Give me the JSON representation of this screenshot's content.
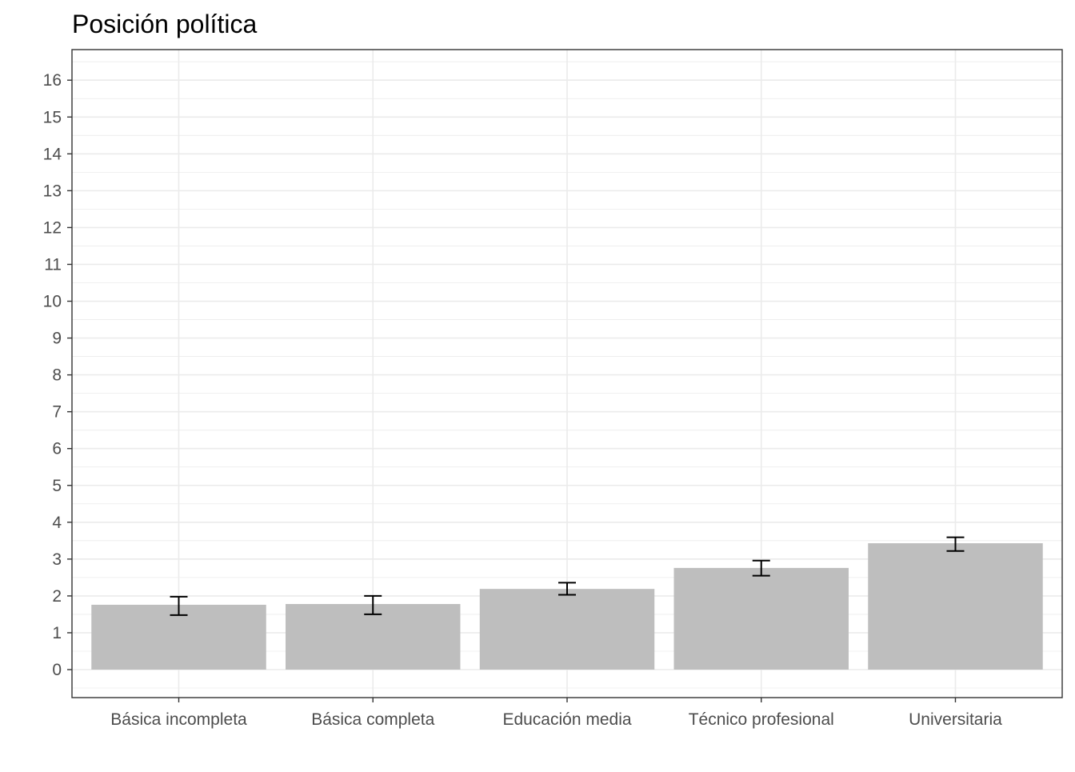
{
  "chart_data": {
    "type": "bar",
    "title": "Posición política",
    "xlabel": "",
    "ylabel": "",
    "categories": [
      "Básica incompleta",
      "Básica completa",
      "Educación media",
      "Técnico profesional",
      "Universitaria"
    ],
    "values": [
      1.76,
      1.78,
      2.19,
      2.76,
      3.43
    ],
    "error_low": [
      1.48,
      1.5,
      2.03,
      2.55,
      3.22
    ],
    "error_high": [
      1.98,
      2.0,
      2.36,
      2.96,
      3.59
    ],
    "ylim": [
      -0.76,
      16.83
    ],
    "yticks": [
      0,
      1,
      2,
      3,
      4,
      5,
      6,
      7,
      8,
      9,
      10,
      11,
      12,
      13,
      14,
      15,
      16
    ],
    "grid": true,
    "bar_color": "#BEBEBE",
    "error_bar_color": "#000000"
  }
}
